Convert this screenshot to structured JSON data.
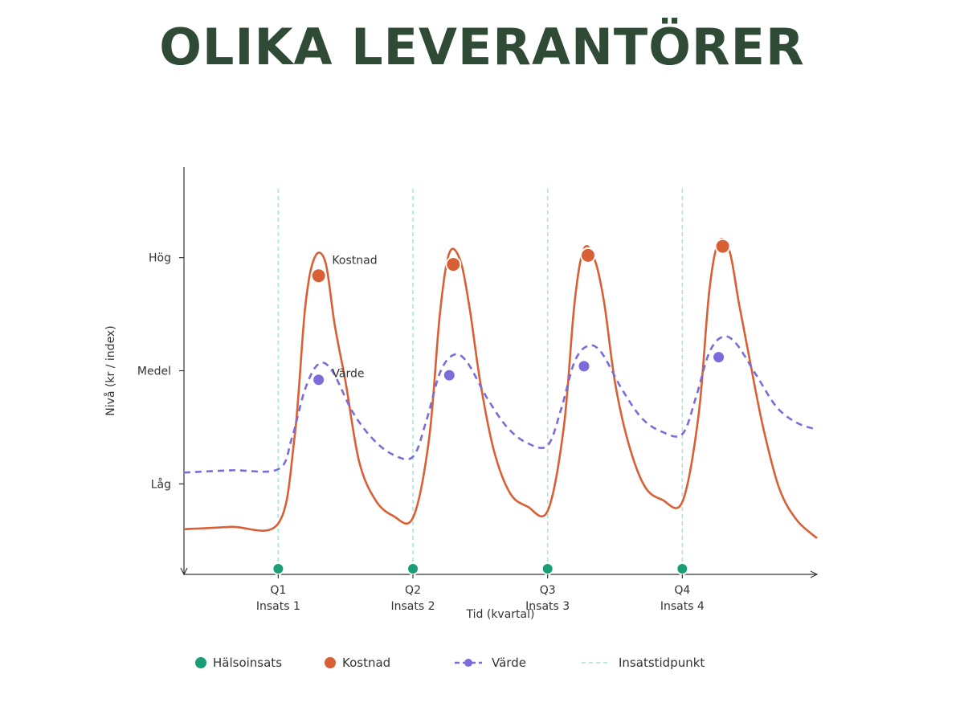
{
  "title": "OLIKA LEVERANTÖRER",
  "colors": {
    "title": "#2f4a35",
    "halsoinsats": "#1a9e77",
    "kostnad": "#d95f35",
    "varde": "#7b6cdb",
    "insatstidpunkt": "#a6e3d3",
    "axis": "#333333"
  },
  "chart_data": {
    "type": "line",
    "xlabel": "Tid (kvartal)",
    "ylabel": "Nivå (kr / index)",
    "xlim": [
      0,
      4.7
    ],
    "ylim": [
      0,
      1.8
    ],
    "y_ticks": [
      {
        "value": 0.4,
        "label": "Låg"
      },
      {
        "value": 0.9,
        "label": "Medel"
      },
      {
        "value": 1.4,
        "label": "Hög"
      }
    ],
    "x_ticks": [
      {
        "value": 0.7,
        "label": "Q1",
        "sublabel": "Insats 1"
      },
      {
        "value": 1.7,
        "label": "Q2",
        "sublabel": "Insats 2"
      },
      {
        "value": 2.7,
        "label": "Q3",
        "sublabel": "Insats 3"
      },
      {
        "value": 3.7,
        "label": "Q4",
        "sublabel": "Insats 4"
      }
    ],
    "intervention_times": [
      0.7,
      1.7,
      2.7,
      3.7
    ],
    "series": [
      {
        "name": "Kostnad",
        "style": "solid",
        "x": [
          0,
          0.35,
          0.7,
          0.82,
          0.9,
          0.97,
          1.05,
          1.12,
          1.2,
          1.3,
          1.42,
          1.55,
          1.7,
          1.82,
          1.9,
          1.97,
          2.05,
          2.12,
          2.2,
          2.3,
          2.42,
          2.55,
          2.7,
          2.82,
          2.9,
          2.97,
          3.05,
          3.12,
          3.2,
          3.3,
          3.42,
          3.55,
          3.7,
          3.82,
          3.9,
          3.97,
          4.05,
          4.12,
          4.2,
          4.3,
          4.42,
          4.55,
          4.7
        ],
        "y": [
          0.2,
          0.21,
          0.225,
          0.6,
          1.18,
          1.4,
          1.38,
          1.1,
          0.85,
          0.5,
          0.33,
          0.26,
          0.25,
          0.6,
          1.15,
          1.42,
          1.39,
          1.18,
          0.85,
          0.55,
          0.36,
          0.3,
          0.28,
          0.65,
          1.2,
          1.44,
          1.39,
          1.2,
          0.85,
          0.58,
          0.39,
          0.33,
          0.32,
          0.7,
          1.25,
          1.47,
          1.43,
          1.2,
          0.95,
          0.65,
          0.38,
          0.24,
          0.16
        ],
        "markers": {
          "x": [
            1.0,
            2.0,
            3.0,
            4.0
          ],
          "y": [
            1.32,
            1.37,
            1.41,
            1.45
          ]
        }
      },
      {
        "name": "Värde",
        "style": "dashed",
        "x": [
          0,
          0.35,
          0.7,
          0.8,
          0.9,
          1.0,
          1.1,
          1.25,
          1.4,
          1.55,
          1.7,
          1.8,
          1.9,
          2.0,
          2.1,
          2.25,
          2.4,
          2.55,
          2.7,
          2.8,
          2.9,
          3.0,
          3.1,
          3.25,
          3.4,
          3.55,
          3.7,
          3.8,
          3.9,
          4.0,
          4.1,
          4.25,
          4.4,
          4.55,
          4.7
        ],
        "y": [
          0.45,
          0.46,
          0.465,
          0.6,
          0.82,
          0.93,
          0.9,
          0.72,
          0.6,
          0.53,
          0.52,
          0.68,
          0.89,
          0.97,
          0.94,
          0.78,
          0.65,
          0.58,
          0.57,
          0.73,
          0.94,
          1.01,
          0.98,
          0.82,
          0.69,
          0.63,
          0.62,
          0.78,
          0.98,
          1.05,
          1.02,
          0.88,
          0.74,
          0.67,
          0.64
        ],
        "markers": {
          "x": [
            1.0,
            1.97,
            2.97,
            3.97
          ],
          "y": [
            0.86,
            0.88,
            0.92,
            0.96
          ]
        }
      },
      {
        "name": "Hälsoinsats",
        "style": "points",
        "x": [
          0.7,
          1.7,
          2.7,
          3.7
        ],
        "y": [
          0.025,
          0.025,
          0.025,
          0.025
        ]
      }
    ],
    "annotations": [
      {
        "text": "Kostnad",
        "x": 1.1,
        "y": 1.39
      },
      {
        "text": "Värde",
        "x": 1.1,
        "y": 0.89
      }
    ],
    "legend": {
      "position": "bottom",
      "entries": [
        {
          "label": "Hälsoinsats",
          "kind": "dot",
          "color_key": "halsoinsats"
        },
        {
          "label": "Kostnad",
          "kind": "dot",
          "color_key": "kostnad"
        },
        {
          "label": "Värde",
          "kind": "dashed-dot",
          "color_key": "varde"
        },
        {
          "label": "Insatstidpunkt",
          "kind": "dashed-line",
          "color_key": "insatstidpunkt"
        }
      ]
    },
    "grid": false
  }
}
